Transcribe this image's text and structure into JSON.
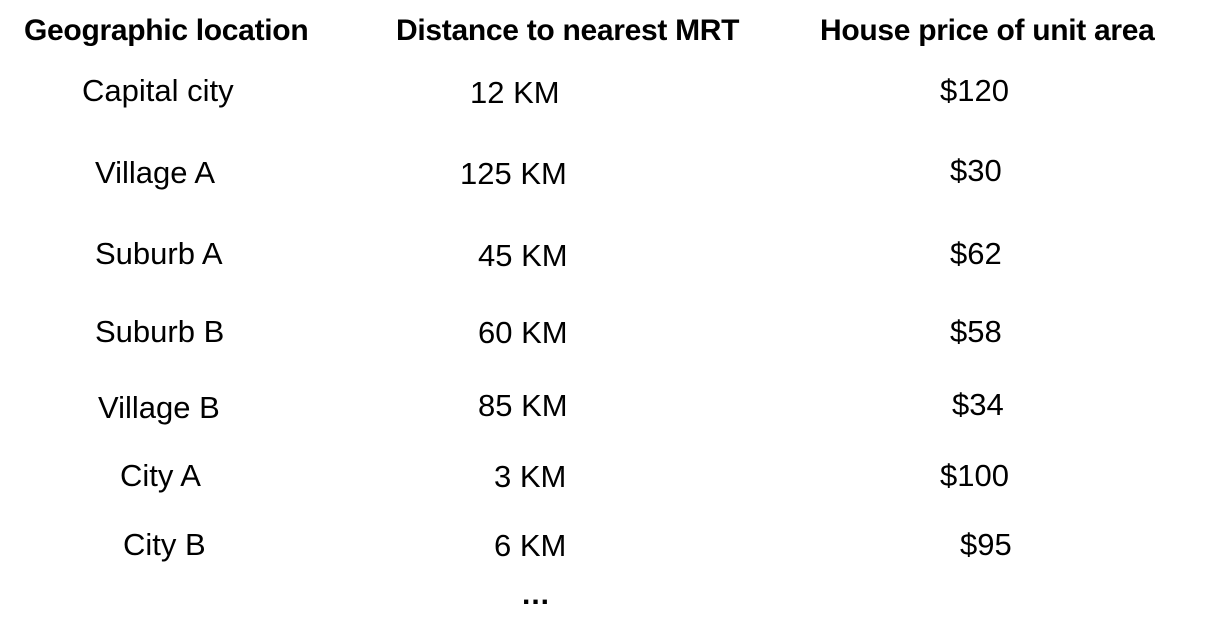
{
  "headers": {
    "location": "Geographic location",
    "distance": "Distance to nearest MRT",
    "price": "House price of unit area"
  },
  "rows": [
    {
      "location": "Capital city",
      "distance": "12 KM",
      "price": "$120"
    },
    {
      "location": "Village A",
      "distance": "125 KM",
      "price": "$30"
    },
    {
      "location": "Suburb A",
      "distance": "45 KM",
      "price": "$62"
    },
    {
      "location": "Suburb B",
      "distance": "60 KM",
      "price": "$58"
    },
    {
      "location": "Village B",
      "distance": "85 KM",
      "price": "$34"
    },
    {
      "location": "City A",
      "distance": "3 KM",
      "price": "$100"
    },
    {
      "location": "City B",
      "distance": "6 KM",
      "price": "$95"
    }
  ],
  "continuation": "..."
}
